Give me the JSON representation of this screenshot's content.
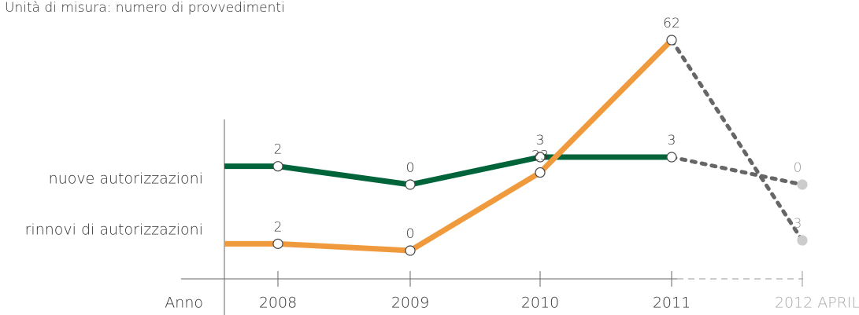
{
  "chart_data": {
    "type": "line",
    "subtitle": "Unità di misura: numero di provvedimenti",
    "x_label": "Anno",
    "categories": [
      "2008",
      "2009",
      "2010",
      "2011",
      "2012 APRILE"
    ],
    "series": [
      {
        "name": "nuove autorizzazioni",
        "color": "#00643a",
        "values": [
          2,
          0,
          3,
          3,
          0
        ],
        "ylim": [
          0,
          3
        ]
      },
      {
        "name": "rinnovi di autorizzazioni",
        "color": "#f09a3e",
        "values": [
          2,
          0,
          23,
          62,
          3
        ],
        "ylim": [
          0,
          62
        ]
      }
    ]
  }
}
